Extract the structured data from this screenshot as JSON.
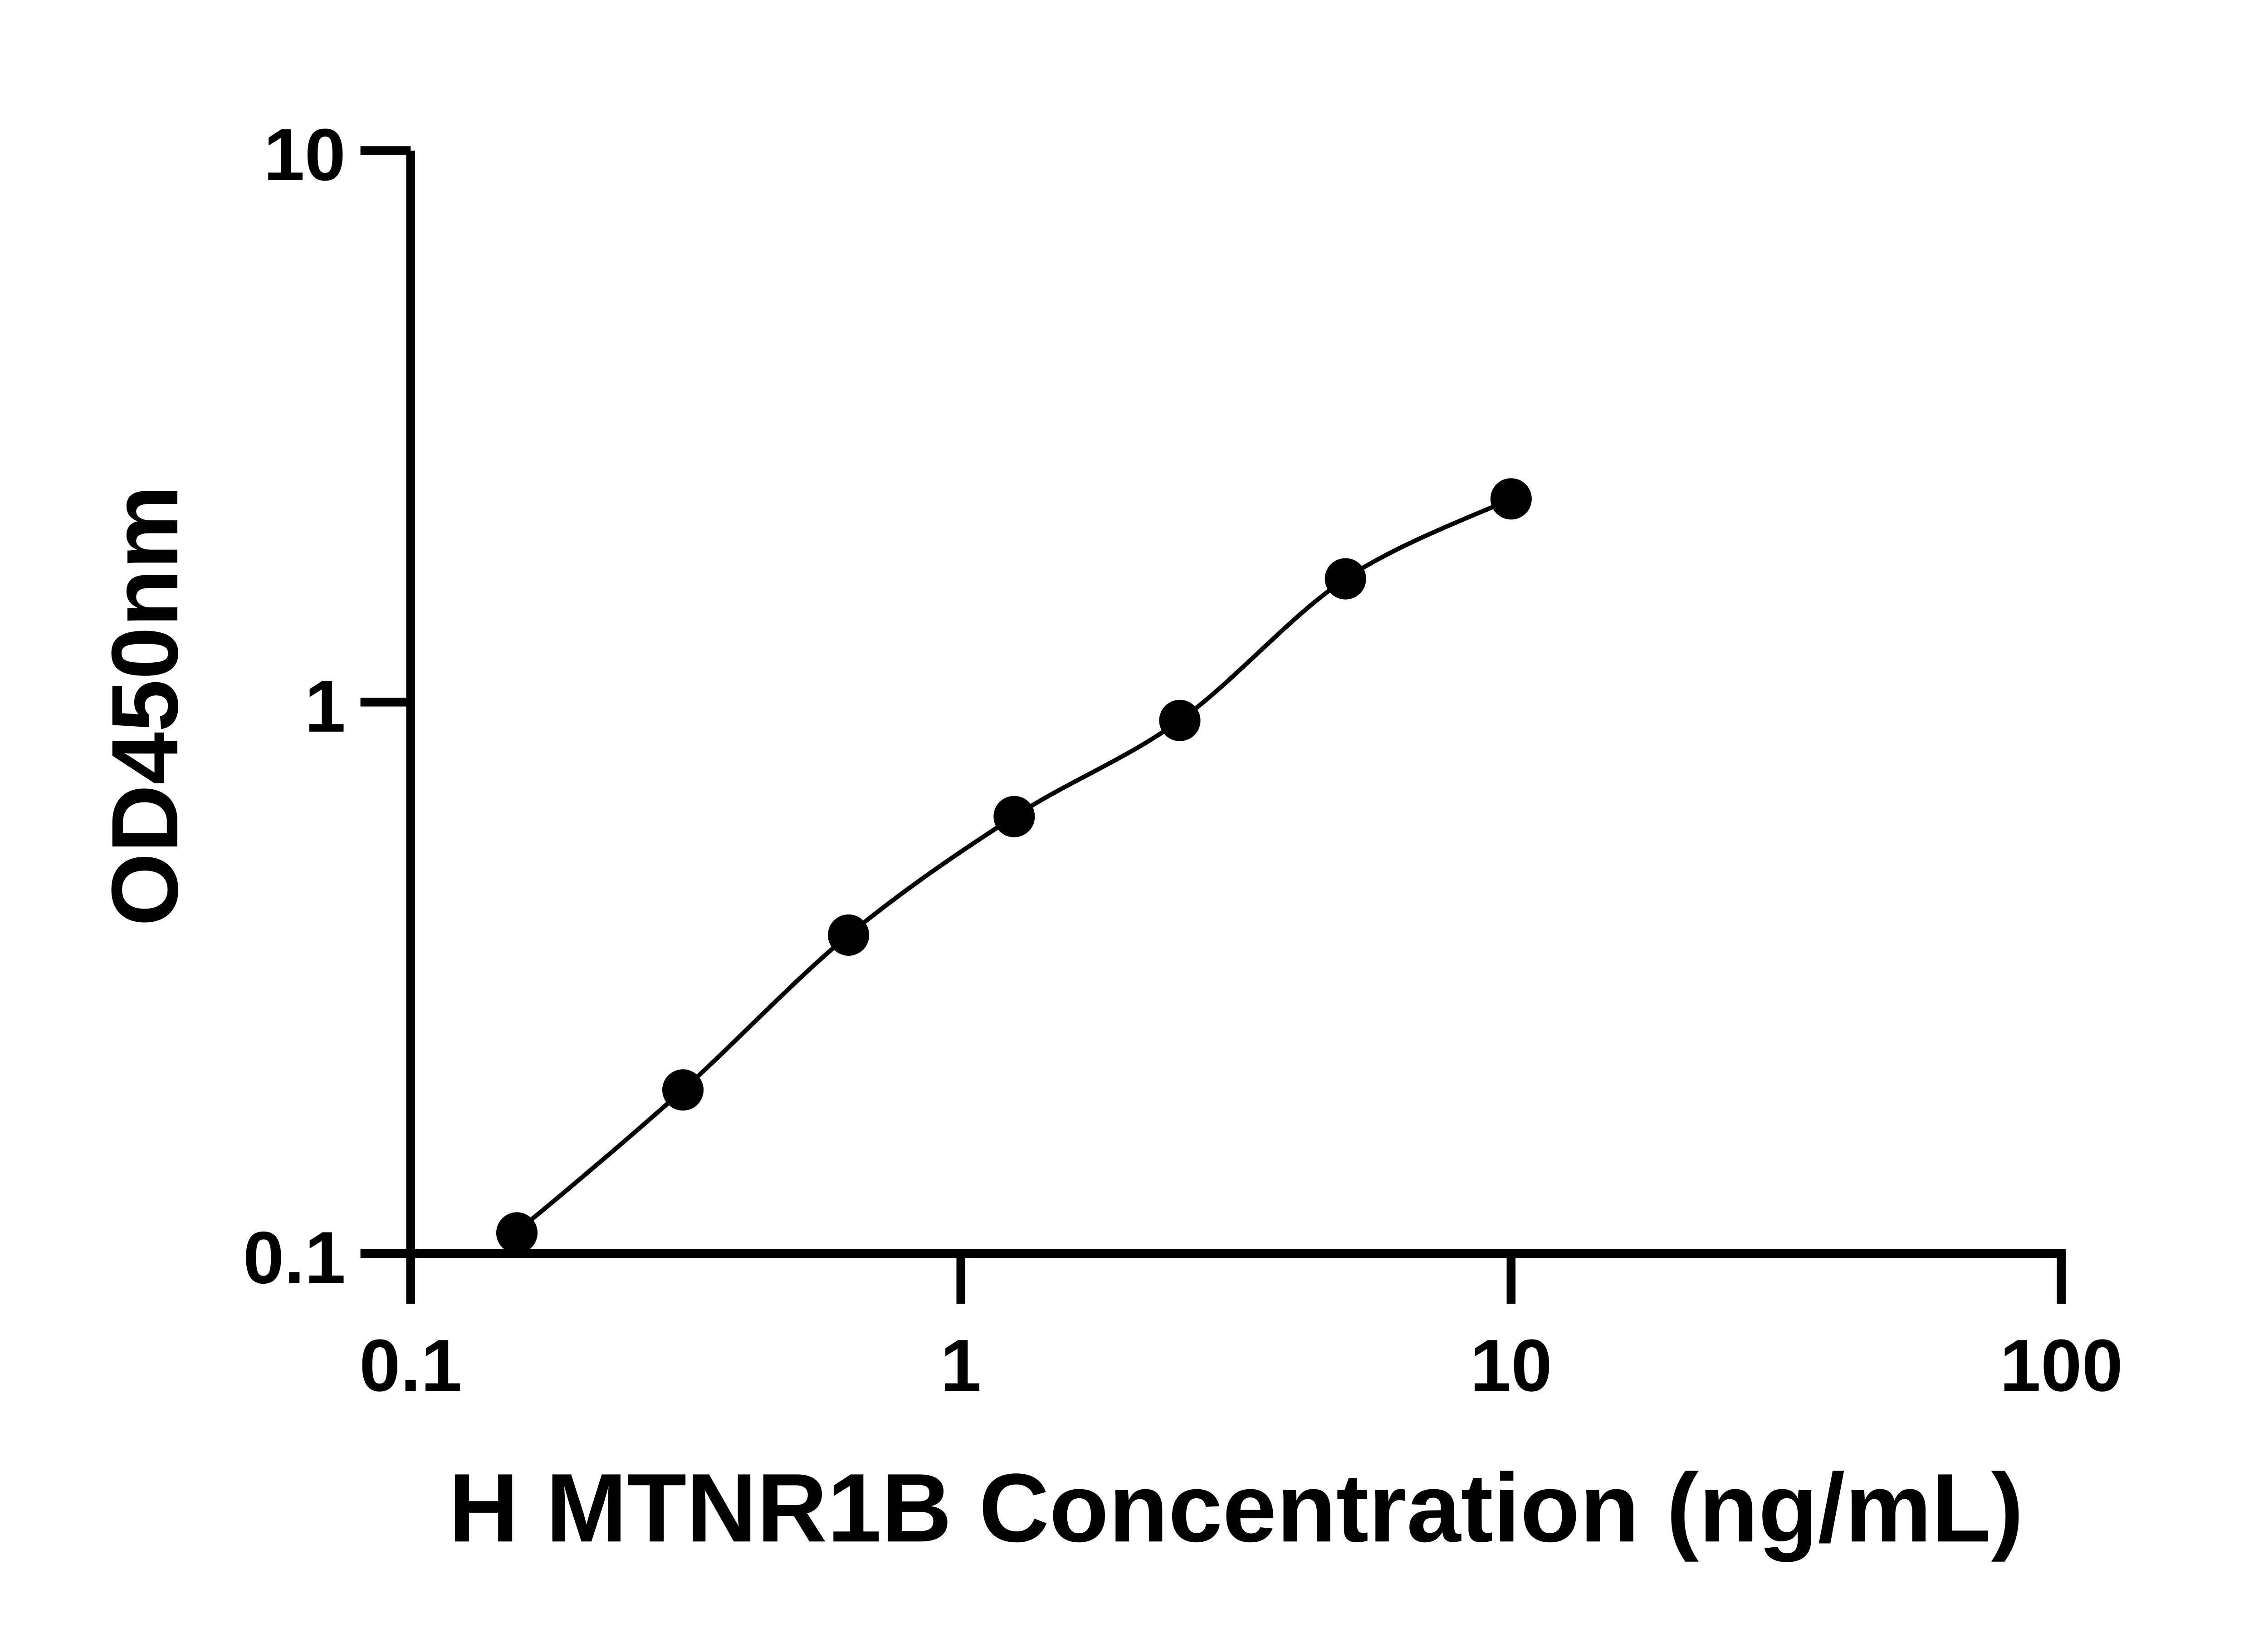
{
  "chart_data": {
    "type": "scatter",
    "title": "",
    "xlabel": "H MTNR1B Concentration (ng/mL)",
    "ylabel": "OD450nm",
    "xscale": "log",
    "yscale": "log",
    "xlim": [
      0.1,
      100
    ],
    "ylim": [
      0.1,
      10
    ],
    "xticks": [
      "0.1",
      "1",
      "10",
      "100"
    ],
    "yticks": [
      "0.1",
      "1",
      "10"
    ],
    "grid": false,
    "legend": "none",
    "fit_curve": true,
    "marker_color": "#000000",
    "points": [
      {
        "x": 0.156,
        "y": 0.109
      },
      {
        "x": 0.3125,
        "y": 0.198
      },
      {
        "x": 0.625,
        "y": 0.378
      },
      {
        "x": 1.25,
        "y": 0.62
      },
      {
        "x": 2.5,
        "y": 0.926
      },
      {
        "x": 5,
        "y": 1.673
      },
      {
        "x": 10,
        "y": 2.336
      }
    ]
  }
}
